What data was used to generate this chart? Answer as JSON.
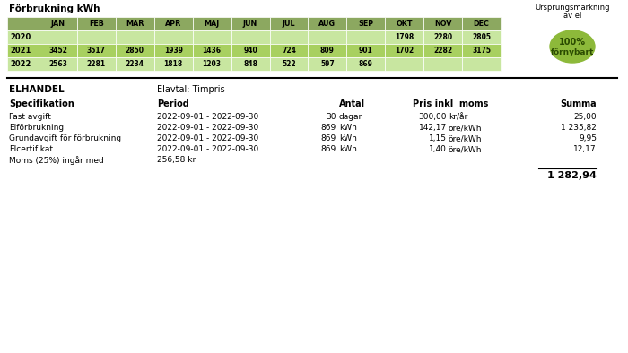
{
  "title_table": "Förbrukning kWh",
  "badge_line1": "Ursprungsmärkning",
  "badge_line2": "av el",
  "badge_line3": "100%",
  "badge_line4": "förnybart",
  "badge_color": "#8db93a",
  "months": [
    "JAN",
    "FEB",
    "MAR",
    "APR",
    "MAJ",
    "JUN",
    "JUL",
    "AUG",
    "SEP",
    "OKT",
    "NOV",
    "DEC"
  ],
  "rows": [
    {
      "year": "2020",
      "values": [
        "",
        "",
        "",
        "",
        "",
        "",
        "",
        "",
        "",
        "1798",
        "2280",
        "2805"
      ]
    },
    {
      "year": "2021",
      "values": [
        "3452",
        "3517",
        "2850",
        "1939",
        "1436",
        "940",
        "724",
        "809",
        "901",
        "1702",
        "2282",
        "3175"
      ]
    },
    {
      "year": "2022",
      "values": [
        "2563",
        "2281",
        "2234",
        "1818",
        "1203",
        "848",
        "522",
        "597",
        "869",
        "",
        "",
        ""
      ]
    }
  ],
  "row_bg_colors": [
    "#c8e6a0",
    "#a8d060",
    "#c8e6a0"
  ],
  "header_bg": "#8ca860",
  "section_title": "ELHANDEL",
  "section_subtitle": "Elavtal: Timpris",
  "spec_rows": [
    {
      "spec": "Fast avgift",
      "period": "2022-09-01 - 2022-09-30",
      "antal": "30",
      "enhet": "dagar",
      "pris": "300,00",
      "pris_enhet": "kr/år",
      "summa": "25,00"
    },
    {
      "spec": "Elförbrukning",
      "period": "2022-09-01 - 2022-09-30",
      "antal": "869",
      "enhet": "kWh",
      "pris": "142,17",
      "pris_enhet": "öre/kWh",
      "summa": "1 235,82"
    },
    {
      "spec": "Grundavgift för förbrukning",
      "period": "2022-09-01 - 2022-09-30",
      "antal": "869",
      "enhet": "kWh",
      "pris": "1,15",
      "pris_enhet": "öre/kWh",
      "summa": "9,95"
    },
    {
      "spec": "Elcertifikat",
      "period": "2022-09-01 - 2022-09-30",
      "antal": "869",
      "enhet": "kWh",
      "pris": "1,40",
      "pris_enhet": "öre/kWh",
      "summa": "12,17"
    }
  ],
  "moms_text": "Moms (25%) ingår med",
  "moms_value": "256,58 kr",
  "total": "1 282,94",
  "bg_color": "#ffffff"
}
